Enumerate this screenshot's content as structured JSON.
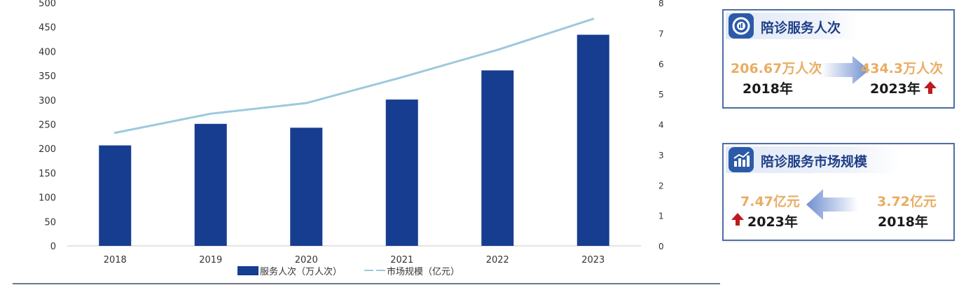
{
  "chart_data": {
    "type": "bar",
    "categories": [
      "2018",
      "2019",
      "2020",
      "2021",
      "2022",
      "2023"
    ],
    "series": [
      {
        "name": "服务人次（万人次）",
        "type": "bar",
        "axis": "left",
        "values": [
          206.67,
          251,
          243,
          301,
          361,
          434.3
        ],
        "color": "#163d8f"
      },
      {
        "name": "市场规模（亿元）",
        "type": "line",
        "axis": "right",
        "values": [
          3.72,
          4.35,
          4.7,
          5.55,
          6.45,
          7.47
        ],
        "color": "#9cc9dd"
      }
    ],
    "y_left": {
      "min": 0,
      "max": 500,
      "ticks": [
        "0",
        "50",
        "100",
        "150",
        "200",
        "250",
        "300",
        "350",
        "400",
        "450",
        "500"
      ]
    },
    "y_right": {
      "min": 0,
      "max": 8,
      "ticks": [
        "0",
        "1",
        "2",
        "3",
        "4",
        "5",
        "6",
        "7",
        "8"
      ]
    },
    "grid": false,
    "legend": "bottom"
  },
  "card_service": {
    "title": "陪诊服务人次",
    "from_value": "206.67万人次",
    "from_year": "2018年",
    "to_value": "434.3万人次",
    "to_year": "2023年"
  },
  "card_market": {
    "title": "陪诊服务市场规模",
    "left_value": "7.47亿元",
    "left_year": "2023年",
    "right_value": "3.72亿元",
    "right_year": "2018年"
  },
  "colors": {
    "bar": "#163d8f",
    "line": "#9cc9dd",
    "value_orange": "#e8ad63",
    "card_title": "#1f3f86",
    "up_arrow": "#c0191f"
  },
  "icons": [
    "target-icon",
    "bar-trend-icon",
    "gradient-arrow-right",
    "gradient-arrow-left",
    "red-up-arrow-icon"
  ]
}
